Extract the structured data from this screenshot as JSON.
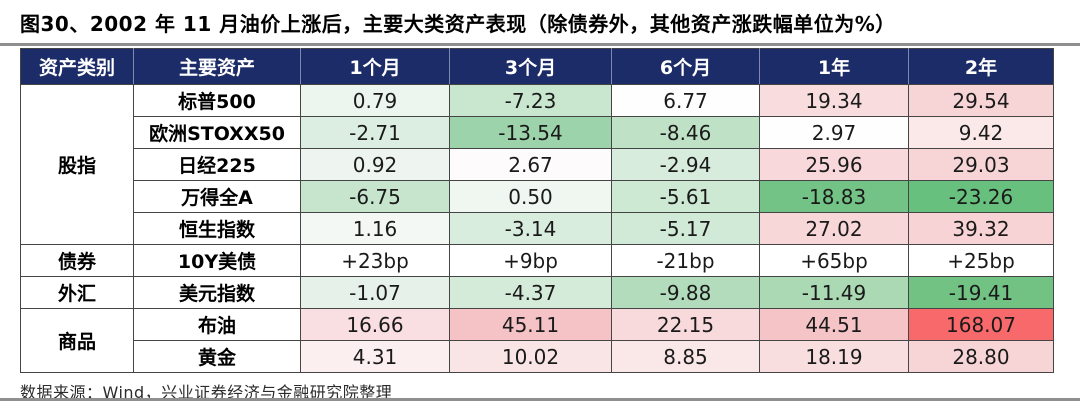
{
  "title": "图30、2002 年 11 月油价上涨后，主要大类资产表现（除债券外，其他资产涨跌幅单位为%）",
  "source": "数据来源：Wind，兴业证券经济与金融研究院整理",
  "colors": {
    "header_bg": "#1c2c68",
    "header_text": "#ffffff",
    "border": "#454545",
    "divider": "#8f8f8f",
    "max_gain_red": "#f8696b",
    "max_loss_green": "#63be7b"
  },
  "chart_data": {
    "type": "table",
    "title": "图30、2002 年 11 月油价上涨后，主要大类资产表现（除债券外，其他资产涨跌幅单位为%）",
    "columns": [
      "资产类别",
      "主要资产",
      "1个月",
      "3个月",
      "6个月",
      "1年",
      "2年"
    ],
    "groups": [
      {
        "category": "股指",
        "rows": [
          {
            "asset": "标普500",
            "values": [
              "0.79",
              "-7.23",
              "6.77",
              "19.34",
              "29.54"
            ],
            "colors": [
              "#edf5ef",
              "#c9e7cf",
              "#fefefe",
              "#f8dcde",
              "#f7d4d6"
            ]
          },
          {
            "asset": "欧洲STOXX50",
            "values": [
              "-2.71",
              "-13.54",
              "-8.46",
              "2.97",
              "9.42"
            ],
            "colors": [
              "#dceee1",
              "#9dd3aa",
              "#bfe2c6",
              "#fefefe",
              "#fbe9ea"
            ]
          },
          {
            "asset": "日经225",
            "values": [
              "0.92",
              "2.67",
              "-2.94",
              "25.96",
              "29.03"
            ],
            "colors": [
              "#eef5f0",
              "#fdfbfb",
              "#d8ecdd",
              "#f8d8da",
              "#f7d5d7"
            ]
          },
          {
            "asset": "万得全A",
            "values": [
              "-6.75",
              "0.50",
              "-5.61",
              "-18.83",
              "-23.26"
            ],
            "colors": [
              "#c6e5cc",
              "#f0f7f1",
              "#cde8d3",
              "#74c386",
              "#67c07d"
            ]
          },
          {
            "asset": "恒生指数",
            "values": [
              "1.16",
              "-3.14",
              "-5.17",
              "27.02",
              "39.32"
            ],
            "colors": [
              "#f3f8f4",
              "#d9edde",
              "#d1e9d7",
              "#f8d7d9",
              "#f8d3d5"
            ]
          }
        ]
      },
      {
        "category": "债券",
        "rows": [
          {
            "asset": "10Y美债",
            "values": [
              "+23bp",
              "+9bp",
              "-21bp",
              "+65bp",
              "+25bp"
            ],
            "colors": [
              "#ffffff",
              "#ffffff",
              "#ffffff",
              "#ffffff",
              "#ffffff"
            ]
          }
        ]
      },
      {
        "category": "外汇",
        "rows": [
          {
            "asset": "美元指数",
            "values": [
              "-1.07",
              "-4.37",
              "-9.88",
              "-11.49",
              "-19.41"
            ],
            "colors": [
              "#e6f1e9",
              "#d4ebda",
              "#b2dcbb",
              "#aad9b4",
              "#71c283"
            ]
          }
        ]
      },
      {
        "category": "商品",
        "rows": [
          {
            "asset": "布油",
            "values": [
              "16.66",
              "45.11",
              "22.15",
              "44.51",
              "168.07"
            ],
            "colors": [
              "#f9dfe1",
              "#f5c3c6",
              "#f8dadc",
              "#f5c4c7",
              "#f8696b"
            ]
          },
          {
            "asset": "黄金",
            "values": [
              "4.31",
              "10.02",
              "8.85",
              "18.19",
              "28.80"
            ],
            "colors": [
              "#fcefef",
              "#fae5e6",
              "#fae7e8",
              "#f9dedf",
              "#f7d5d7"
            ]
          }
        ]
      }
    ],
    "source": "数据来源：Wind，兴业证券经济与金融研究院整理"
  }
}
